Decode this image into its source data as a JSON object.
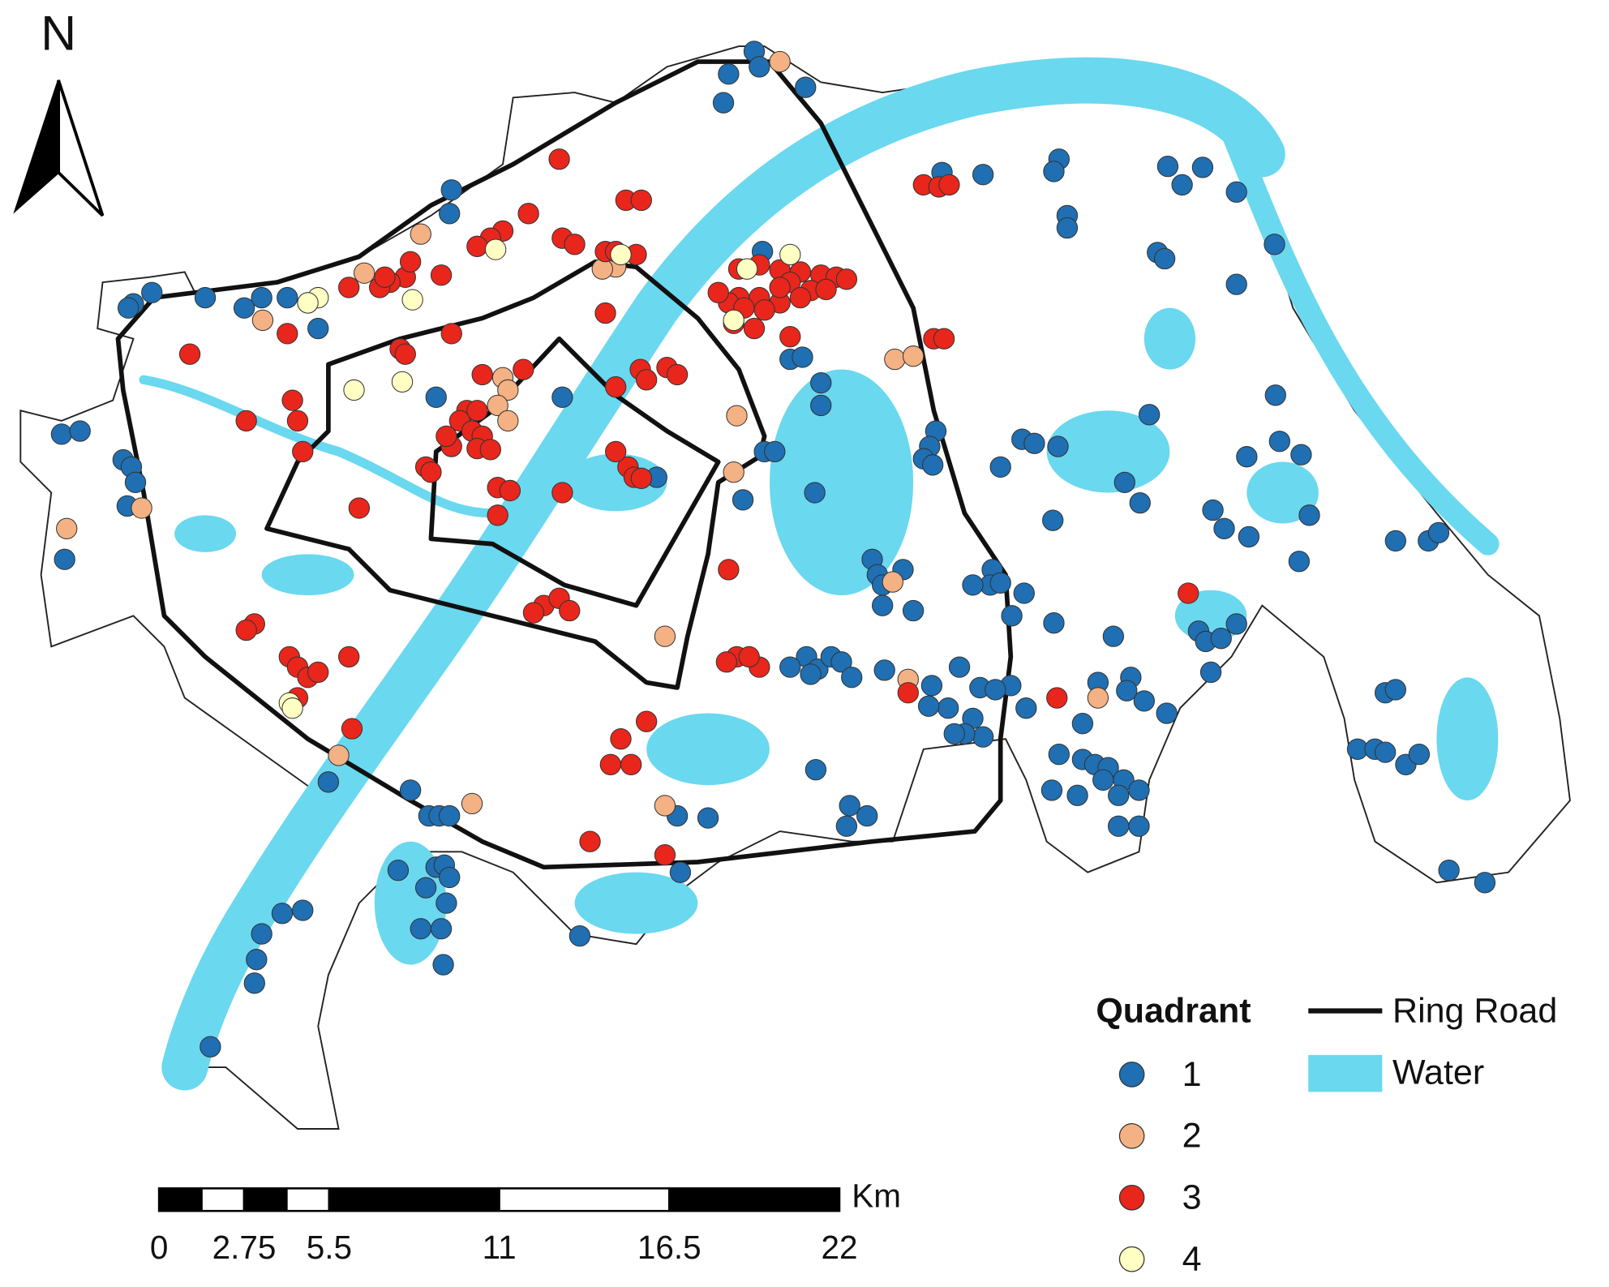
{
  "north_arrow": {
    "label": "N"
  },
  "scale_bar": {
    "unit": "Km",
    "ticks": [
      0,
      2.75,
      5.5,
      11,
      16.5,
      22
    ]
  },
  "legend": {
    "title": "Quadrant",
    "items": [
      {
        "label": "1",
        "color": "#1f6fb2"
      },
      {
        "label": "2",
        "color": "#f4b183"
      },
      {
        "label": "3",
        "color": "#e8261c"
      },
      {
        "label": "4",
        "color": "#ffffc4"
      }
    ],
    "ring_road": "Ring Road",
    "water": "Water",
    "water_color": "#6ad8ef"
  }
}
